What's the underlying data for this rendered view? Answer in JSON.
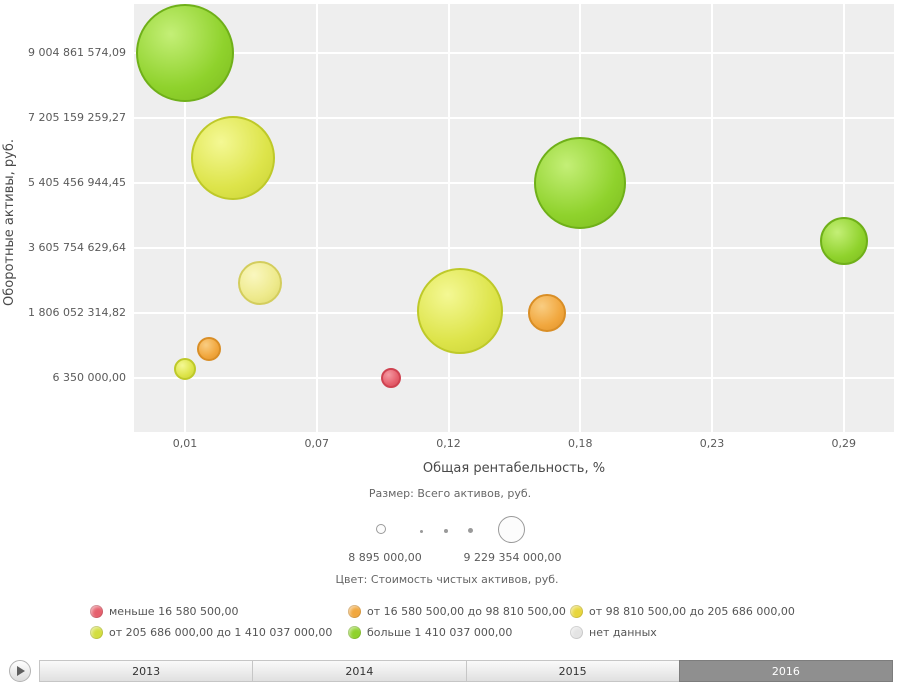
{
  "chart_data": {
    "type": "bubble",
    "xlabel": "Общая рентабельность, %",
    "ylabel": "Оборотные активы, руб.",
    "x_ticks": [
      "0,01",
      "0,07",
      "0,12",
      "0,18",
      "0,23",
      "0,29"
    ],
    "x_tick_values": [
      0.01,
      0.07,
      0.12,
      0.18,
      0.23,
      0.29
    ],
    "y_ticks": [
      "9 004 861 574,09",
      "7 205 159 259,27",
      "5 405 456 944,45",
      "3 605 754 629,64",
      "1 806 052 314,82",
      "6 350 000,00"
    ],
    "y_tick_values": [
      9004861574.09,
      7205159259.27,
      5405456944.45,
      3605754629.64,
      1806052314.82,
      6350000.0
    ],
    "grid": true,
    "bubbles": [
      {
        "x": 0.01,
        "y": 9004861574,
        "r": 49,
        "color": "green",
        "category": "больше 1 410 037 000,00"
      },
      {
        "x": 0.032,
        "y": 6100000000,
        "r": 42,
        "color": "yellowgreen",
        "category": "от 205 686 000,00 до 1 410 037 000,00"
      },
      {
        "x": 0.044,
        "y": 2650000000,
        "r": 22,
        "color": "paleyellow",
        "category": "от 98 810 500,00 до 205 686 000,00"
      },
      {
        "x": 0.01,
        "y": 250000000,
        "r": 11,
        "color": "yellowgreen",
        "category": "от 205 686 000,00 до 1 410 037 000,00"
      },
      {
        "x": 0.021,
        "y": 800000000,
        "r": 12,
        "color": "orange",
        "category": "от 16 580 500,00 до 98 810 500,00"
      },
      {
        "x": 0.098,
        "y": 6350000,
        "r": 10,
        "color": "red",
        "category": "меньше 16 580 500,00"
      },
      {
        "x": 0.165,
        "y": 1806052315,
        "r": 19,
        "color": "orange",
        "category": "от 16 580 500,00 до 98 810 500,00"
      },
      {
        "x": 0.125,
        "y": 1850000000,
        "r": 43,
        "color": "yellowgreen",
        "category": "от 205 686 000,00 до 1 410 037 000,00"
      },
      {
        "x": 0.18,
        "y": 5405456944,
        "r": 46,
        "color": "green",
        "category": "больше 1 410 037 000,00"
      },
      {
        "x": 0.29,
        "y": 3800000000,
        "r": 24,
        "color": "green",
        "category": "больше 1 410 037 000,00"
      }
    ],
    "palette": {
      "red": {
        "light": "#f49aa3",
        "base": "#e6606d",
        "dark": "#d54b59",
        "border": "#cf4351"
      },
      "orange": {
        "light": "#f9cd82",
        "base": "#f1a73e",
        "dark": "#e0932c",
        "border": "#d98e26"
      },
      "paleyellow": {
        "light": "#faf7c0",
        "base": "#eeea8c",
        "dark": "#ddd86a",
        "border": "#d3cd5d"
      },
      "yellowgreen": {
        "light": "#f4f894",
        "base": "#dde44a",
        "dark": "#c9d134",
        "border": "#bec929"
      },
      "green": {
        "light": "#c4ef77",
        "base": "#8fd22c",
        "dark": "#7cba1f",
        "border": "#6fb019"
      }
    },
    "size_legend": {
      "title": "Размер: Всего активов, руб.",
      "min_label": "8 895 000,00",
      "max_label": "9 229 354 000,00"
    },
    "color_legend": {
      "title": "Цвет: Стоимость чистых активов, руб.",
      "items": [
        {
          "label": "меньше 16 580 500,00",
          "color": "#e6606d"
        },
        {
          "label": "от 16 580 500,00 до 98 810 500,00",
          "color": "#f1a73e"
        },
        {
          "label": "от 98 810 500,00 до 205 686 000,00",
          "color": "#e8d63c"
        },
        {
          "label": "от 205 686 000,00 до 1 410 037 000,00",
          "color": "#d3de3f"
        },
        {
          "label": "больше 1 410 037 000,00",
          "color": "#8fd22c"
        },
        {
          "label": "нет данных",
          "color": "#e4e4e4"
        }
      ]
    }
  },
  "timeline": {
    "years": [
      "2013",
      "2014",
      "2015",
      "2016"
    ],
    "selected": "2016"
  }
}
